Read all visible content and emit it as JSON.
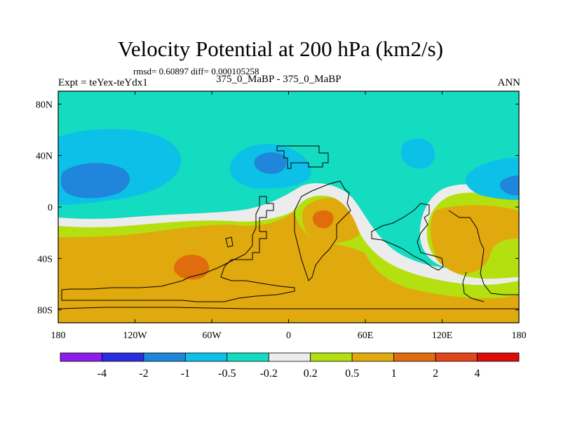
{
  "chart_data": {
    "type": "heatmap",
    "title": "Velocity Potential at 200 hPa (km2/s)",
    "stats_text": "rmsd= 0.60897 diff= 0.000105258",
    "experiment_label": "Expt = teYex-teYdx1",
    "period_label": "375_0_MaBP - 375_0_MaBP",
    "season_label": "ANN",
    "x_axis": {
      "range": [
        -180,
        180
      ],
      "ticks": [
        -180,
        -120,
        -60,
        0,
        60,
        120,
        180
      ],
      "tick_labels": [
        "180",
        "120W",
        "60W",
        "0",
        "60E",
        "120E",
        "180"
      ]
    },
    "y_axis": {
      "range": [
        -90,
        90
      ],
      "ticks": [
        80,
        40,
        0,
        -40,
        -80
      ],
      "tick_labels": [
        "80N",
        "40N",
        "0",
        "40S",
        "80S"
      ]
    },
    "colorbar": {
      "levels": [
        "-4",
        "-2",
        "-1",
        "-0.5",
        "-0.2",
        "0.2",
        "0.5",
        "1",
        "2",
        "4"
      ],
      "colors": [
        "#8c1eeb",
        "#2a2ee0",
        "#1f86dc",
        "#0dc0e8",
        "#14dcc1",
        "#ececec",
        "#b4e00f",
        "#e0a90d",
        "#e06c0d",
        "#e0461a",
        "#e00a0a"
      ]
    },
    "regions": [
      {
        "name": "band -0.5 to -0.2 (north)",
        "value_range": [
          -0.5,
          -0.2
        ],
        "color": "#14dcc1"
      },
      {
        "name": "band -1 to -0.5 (north-west lobe)",
        "value_range": [
          -1,
          -0.5
        ],
        "color": "#0dc0e8"
      },
      {
        "name": "min -2 to -1 near 160W 20N",
        "value_range": [
          -2,
          -1
        ],
        "color": "#1f86dc"
      },
      {
        "name": "near-zero band",
        "value_range": [
          -0.2,
          0.2
        ],
        "color": "#ececec"
      },
      {
        "name": "band 0.2 to 0.5",
        "value_range": [
          0.2,
          0.5
        ],
        "color": "#b4e00f"
      },
      {
        "name": "southern band 0.5 to 1",
        "value_range": [
          0.5,
          1
        ],
        "color": "#e0a90d"
      },
      {
        "name": "max 1 to 2 near 75W 40S",
        "value_range": [
          1,
          2
        ],
        "color": "#e06c0d"
      },
      {
        "name": "max 1 to 2 near 25E 10S",
        "value_range": [
          1,
          2
        ],
        "color": "#e06c0d"
      }
    ]
  }
}
